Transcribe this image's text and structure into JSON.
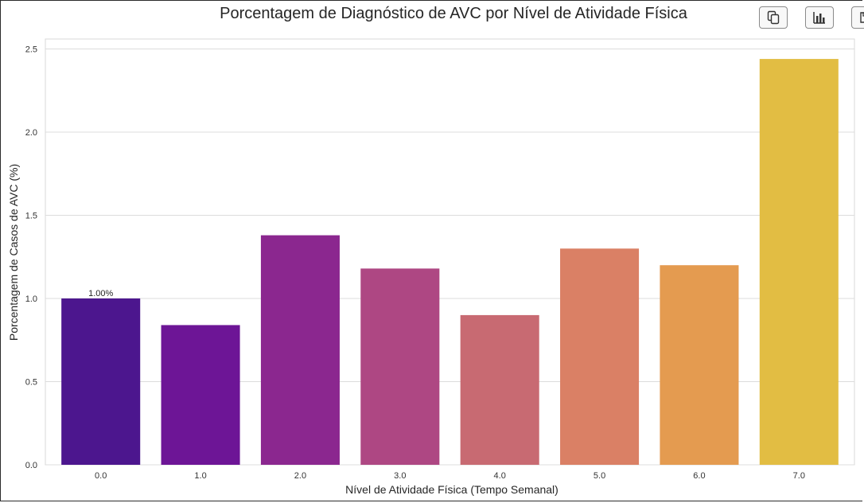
{
  "toolbar": {
    "buttons": [
      {
        "icon": "copy-icon"
      },
      {
        "icon": "bar-chart-icon"
      },
      {
        "icon": "save-icon"
      }
    ]
  },
  "chart_data": {
    "type": "bar",
    "title": "Porcentagem de Diagnóstico de AVC por Nível de Atividade Física",
    "xlabel": "Nível de Atividade Física (Tempo Semanal)",
    "ylabel": "Porcentagem de Casos de AVC (%)",
    "categories": [
      "0.0",
      "1.0",
      "2.0",
      "3.0",
      "4.0",
      "5.0",
      "6.0",
      "7.0"
    ],
    "values": [
      1.0,
      0.84,
      1.38,
      1.18,
      0.9,
      1.3,
      1.2,
      2.44
    ],
    "ylim": [
      0,
      2.56
    ],
    "yticks": [
      "0.0",
      "0.5",
      "1.0",
      "1.5",
      "2.0",
      "2.5"
    ],
    "grid": "horizontal",
    "data_labels": [
      {
        "index": 0,
        "text": "1.00%"
      }
    ],
    "colors": [
      "#4c168e",
      "#6d1596",
      "#8b278f",
      "#ae4783",
      "#c86a72",
      "#da8065",
      "#e49b50",
      "#e2bd43"
    ]
  }
}
